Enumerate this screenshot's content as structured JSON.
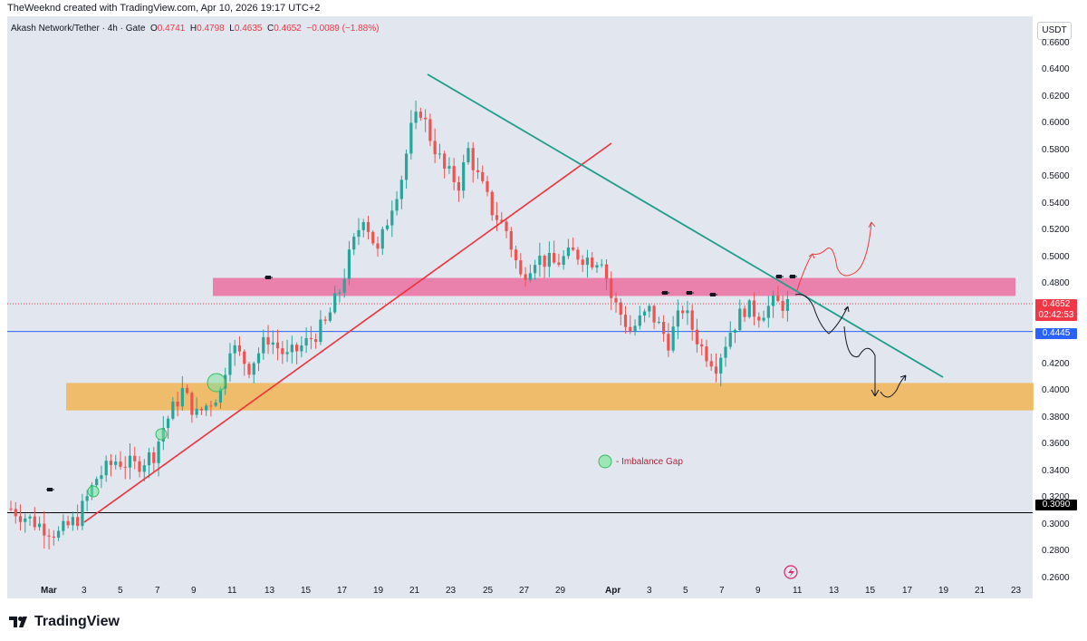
{
  "header": {
    "credit": "TheWeeknd created with TradingView.com, Apr 10, 2026 19:17 UTC+2"
  },
  "legend": {
    "symbol": "Akash Network/Tether · 4h · Gate",
    "o_label": "O",
    "o": "0.4741",
    "h_label": "H",
    "h": "0.4798",
    "l_label": "L",
    "l": "0.4635",
    "c_label": "C",
    "c": "0.4652",
    "change": "−0.0089 (−1.88%)"
  },
  "currency": "USDT",
  "price_tags": {
    "current": "0.4652",
    "countdown": "02:42:53",
    "level_blue": "0.4445",
    "level_black": "0.3090"
  },
  "annotation": {
    "imbalance_label": "- Imbalance Gap"
  },
  "brand": {
    "name": "TradingView"
  },
  "colors": {
    "up": "#26a69a",
    "down": "#ef5350",
    "pink_zone": "#ec5f96",
    "orange_zone": "#f5a623",
    "teal_line": "#1e9e8a",
    "red_line": "#f0303a",
    "blue_line": "#2962ff",
    "chart_bg": "#e2e6ee"
  },
  "chart_data": {
    "type": "candlestick",
    "title": "Akash Network/Tether · 4h · Gate",
    "ylim": [
      0.245,
      0.68
    ],
    "yticks": [
      "0.6600",
      "0.6400",
      "0.6200",
      "0.6000",
      "0.5800",
      "0.5600",
      "0.5400",
      "0.5200",
      "0.5000",
      "0.4800",
      "0.4600",
      "0.4400",
      "0.4200",
      "0.4000",
      "0.3800",
      "0.3600",
      "0.3400",
      "0.3200",
      "0.3000",
      "0.2800",
      "0.2600"
    ],
    "xtick_labels": [
      "Mar",
      "3",
      "5",
      "7",
      "9",
      "11",
      "13",
      "15",
      "17",
      "19",
      "21",
      "23",
      "25",
      "27",
      "29",
      "Apr",
      "3",
      "5",
      "7",
      "9",
      "11",
      "13",
      "15",
      "17",
      "19",
      "21",
      "23"
    ],
    "price_path": [
      [
        0,
        0.312
      ],
      [
        6,
        0.3
      ],
      [
        10,
        0.293
      ],
      [
        14,
        0.305
      ],
      [
        18,
        0.335
      ],
      [
        22,
        0.348
      ],
      [
        26,
        0.344
      ],
      [
        30,
        0.353
      ],
      [
        32,
        0.373
      ],
      [
        36,
        0.4
      ],
      [
        39,
        0.382
      ],
      [
        44,
        0.4
      ],
      [
        46,
        0.435
      ],
      [
        50,
        0.418
      ],
      [
        54,
        0.44
      ],
      [
        58,
        0.425
      ],
      [
        62,
        0.436
      ],
      [
        66,
        0.45
      ],
      [
        69,
        0.475
      ],
      [
        71,
        0.5
      ],
      [
        74,
        0.532
      ],
      [
        77,
        0.503
      ],
      [
        80,
        0.54
      ],
      [
        82,
        0.56
      ],
      [
        84,
        0.595
      ],
      [
        86,
        0.61
      ],
      [
        88,
        0.59
      ],
      [
        91,
        0.565
      ],
      [
        94,
        0.555
      ],
      [
        96,
        0.58
      ],
      [
        98,
        0.56
      ],
      [
        101,
        0.535
      ],
      [
        104,
        0.52
      ],
      [
        107,
        0.485
      ],
      [
        110,
        0.5
      ],
      [
        114,
        0.495
      ],
      [
        118,
        0.503
      ],
      [
        122,
        0.498
      ],
      [
        124,
        0.5
      ],
      [
        126,
        0.47
      ],
      [
        130,
        0.445
      ],
      [
        134,
        0.46
      ],
      [
        138,
        0.437
      ],
      [
        141,
        0.462
      ],
      [
        145,
        0.432
      ],
      [
        148,
        0.42
      ],
      [
        151,
        0.445
      ],
      [
        154,
        0.462
      ],
      [
        157,
        0.458
      ],
      [
        160,
        0.465
      ],
      [
        163,
        0.465
      ]
    ],
    "horizontal_levels": [
      {
        "value": 0.4445,
        "label": "0.4445",
        "color": "#2962ff"
      },
      {
        "value": 0.309,
        "label": "0.3090",
        "color": "#000000"
      },
      {
        "value": 0.4652,
        "label": "0.4652",
        "style": "dotted",
        "color": "#f23645"
      }
    ],
    "zones": [
      {
        "name": "resistance",
        "from": 0.471,
        "to": 0.4845,
        "color": "#ec5f96"
      },
      {
        "name": "support",
        "from": 0.3855,
        "to": 0.406,
        "color": "#f5a623"
      }
    ],
    "annotations": [
      "Imbalance Gap"
    ]
  }
}
